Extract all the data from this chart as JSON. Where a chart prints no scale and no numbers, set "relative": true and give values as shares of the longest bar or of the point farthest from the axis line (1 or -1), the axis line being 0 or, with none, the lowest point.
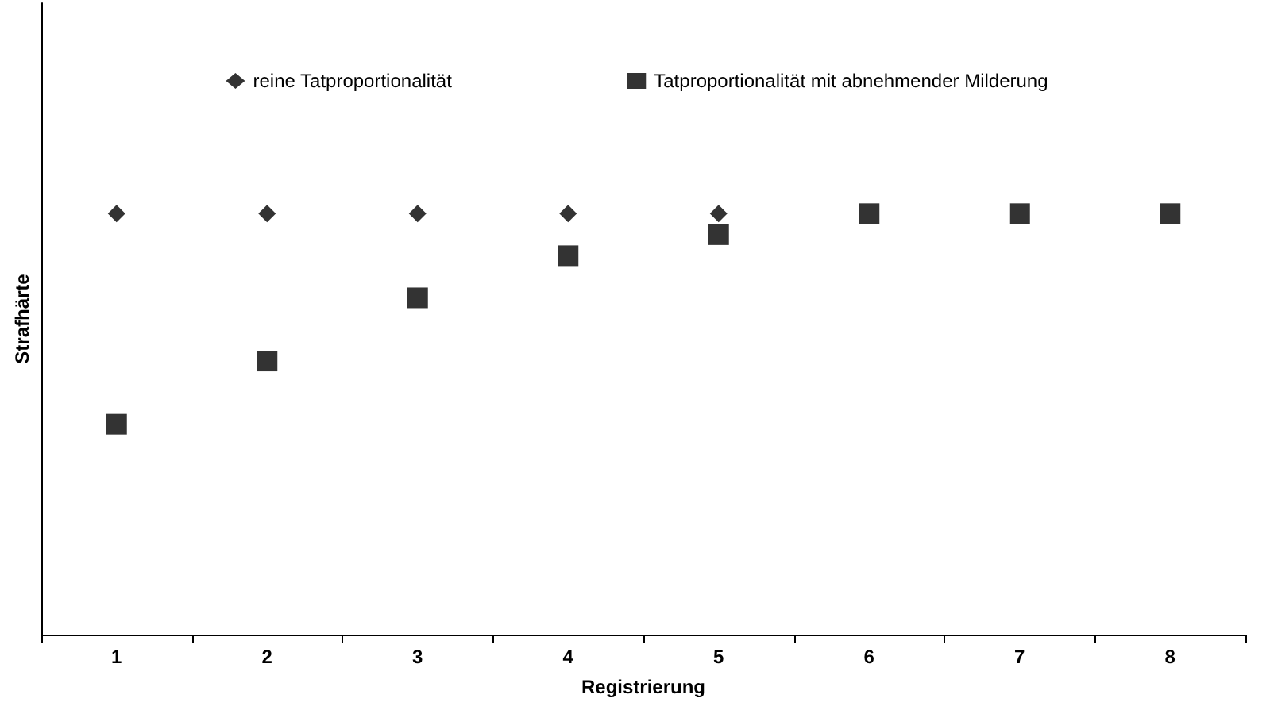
{
  "chart_data": {
    "type": "scatter",
    "relative": true,
    "xlabel": "Registrierung",
    "ylabel": "Strafhärte",
    "categories": [
      "1",
      "2",
      "3",
      "4",
      "5",
      "6",
      "7",
      "8"
    ],
    "legend": "top",
    "grid": false,
    "series": [
      {
        "name": "reine Tatproportionalität",
        "color": "#000000",
        "marker": "diamond",
        "values": [
          1,
          1,
          1,
          1,
          1,
          null,
          null,
          null
        ]
      },
      {
        "name": "Tatproportionalität mit abnehmender Milderung",
        "color": "#000000",
        "marker": "square",
        "values": [
          0.5,
          0.65,
          0.8,
          0.9,
          0.95,
          1,
          1,
          1
        ]
      }
    ]
  }
}
